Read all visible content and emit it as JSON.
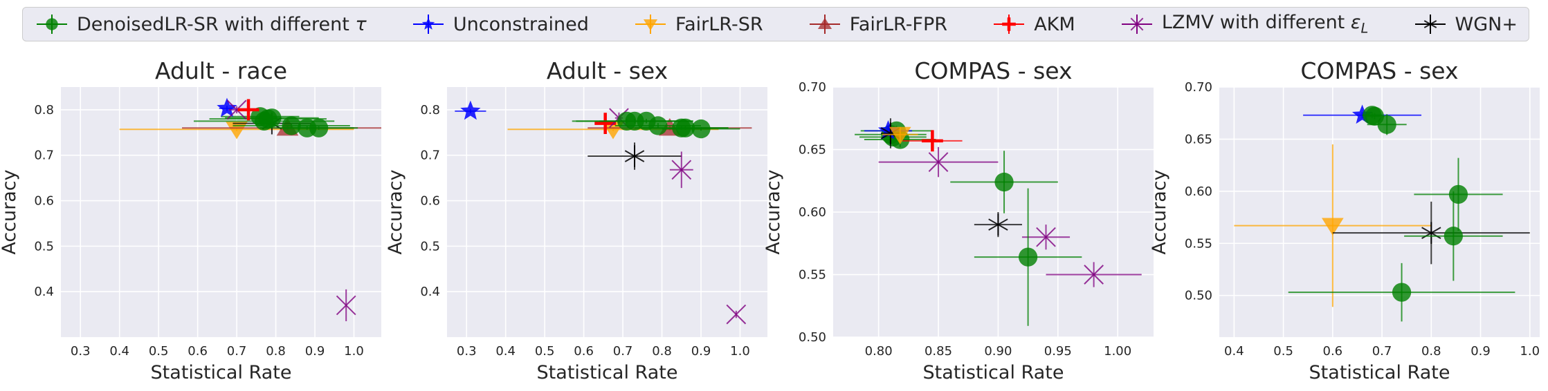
{
  "legend": [
    {
      "key": "denoised",
      "label": "DenoisedLR-SR with different",
      "math": "τ",
      "color": "#008000",
      "marker": "circle"
    },
    {
      "key": "unconstrained",
      "label": "Unconstrained",
      "color": "#0000ff",
      "marker": "star"
    },
    {
      "key": "fairsr",
      "label": "FairLR-SR",
      "color": "#ffa500",
      "marker": "tri_down"
    },
    {
      "key": "fairfpr",
      "label": "FairLR-FPR",
      "color": "#a52a2a",
      "marker": "tri_up"
    },
    {
      "key": "akm",
      "label": "AKM",
      "color": "#ff0000",
      "marker": "plus"
    },
    {
      "key": "lzmv",
      "label": "LZMV with different",
      "math": "ε",
      "math_sub": "L",
      "color": "#800080",
      "marker": "x"
    },
    {
      "key": "wgn",
      "label": "WGN+",
      "color": "#000000",
      "marker": "star6"
    }
  ],
  "chart_data": [
    {
      "type": "scatter",
      "title": "Adult - race",
      "xlabel": "Statistical Rate",
      "ylabel": "Accuracy",
      "xlim": [
        0.25,
        1.07
      ],
      "ylim": [
        0.3,
        0.85
      ],
      "xticks": [
        0.3,
        0.4,
        0.5,
        0.6,
        0.7,
        0.8,
        0.9,
        1.0
      ],
      "xtick_labels": [
        "0.3",
        "0.4",
        "0.5",
        "0.6",
        "0.7",
        "0.8",
        "0.9",
        "1.0"
      ],
      "yticks": [
        0.4,
        0.5,
        0.6,
        0.7,
        0.8
      ],
      "ytick_labels": [
        "0.4",
        "0.5",
        "0.6",
        "0.7",
        "0.8"
      ],
      "points": [
        {
          "s": "fairsr",
          "x": 0.7,
          "y": 0.757,
          "xerr": 0.3,
          "yerr": 0.004
        },
        {
          "s": "fairfpr",
          "x": 0.83,
          "y": 0.76,
          "xerr": 0.27,
          "yerr": 0.005
        },
        {
          "s": "wgn",
          "x": 0.79,
          "y": 0.77,
          "xerr": 0.1,
          "yerr": 0.008
        },
        {
          "s": "denoised",
          "x": 0.77,
          "y": 0.775,
          "xerr": 0.18,
          "yerr": 0.005
        },
        {
          "s": "denoised",
          "x": 0.78,
          "y": 0.78,
          "xerr": 0.15,
          "yerr": 0.006
        },
        {
          "s": "denoised",
          "x": 0.76,
          "y": 0.785,
          "xerr": 0.1,
          "yerr": 0.005
        },
        {
          "s": "denoised",
          "x": 0.79,
          "y": 0.782,
          "xerr": 0.12,
          "yerr": 0.006
        },
        {
          "s": "denoised",
          "x": 0.84,
          "y": 0.765,
          "xerr": 0.15,
          "yerr": 0.005
        },
        {
          "s": "denoised",
          "x": 0.88,
          "y": 0.76,
          "xerr": 0.12,
          "yerr": 0.004
        },
        {
          "s": "denoised",
          "x": 0.91,
          "y": 0.76,
          "xerr": 0.1,
          "yerr": 0.004
        },
        {
          "s": "unconstrained",
          "x": 0.675,
          "y": 0.803,
          "xerr": 0.02,
          "yerr": 0.006
        },
        {
          "s": "lzmv",
          "x": 0.7,
          "y": 0.8,
          "xerr": 0.02,
          "yerr": 0.008
        },
        {
          "s": "akm",
          "x": 0.73,
          "y": 0.8,
          "xerr": 0.025,
          "yerr": 0.01
        },
        {
          "s": "lzmv",
          "x": 0.98,
          "y": 0.37,
          "xerr": 0.0,
          "yerr": 0.035
        }
      ]
    },
    {
      "type": "scatter",
      "title": "Adult - sex",
      "xlabel": "Statistical Rate",
      "ylabel": "Accuracy",
      "xlim": [
        0.25,
        1.07
      ],
      "ylim": [
        0.3,
        0.85
      ],
      "xticks": [
        0.3,
        0.4,
        0.5,
        0.6,
        0.7,
        0.8,
        0.9,
        1.0
      ],
      "xtick_labels": [
        "0.3",
        "0.4",
        "0.5",
        "0.6",
        "0.7",
        "0.8",
        "0.9",
        "1.0"
      ],
      "yticks": [
        0.4,
        0.5,
        0.6,
        0.7,
        0.8
      ],
      "ytick_labels": [
        "0.4",
        "0.5",
        "0.6",
        "0.7",
        "0.8"
      ],
      "points": [
        {
          "s": "unconstrained",
          "x": 0.31,
          "y": 0.797,
          "xerr": 0.04,
          "yerr": 0.005
        },
        {
          "s": "fairsr",
          "x": 0.675,
          "y": 0.757,
          "xerr": 0.27,
          "yerr": 0.004
        },
        {
          "s": "fairfpr",
          "x": 0.82,
          "y": 0.76,
          "xerr": 0.21,
          "yerr": 0.005
        },
        {
          "s": "akm",
          "x": 0.655,
          "y": 0.77,
          "xerr": 0.015,
          "yerr": 0.01
        },
        {
          "s": "lzmv",
          "x": 0.69,
          "y": 0.782,
          "xerr": 0.01,
          "yerr": 0.012
        },
        {
          "s": "denoised",
          "x": 0.71,
          "y": 0.775,
          "xerr": 0.14,
          "yerr": 0.005
        },
        {
          "s": "denoised",
          "x": 0.73,
          "y": 0.775,
          "xerr": 0.15,
          "yerr": 0.005
        },
        {
          "s": "denoised",
          "x": 0.76,
          "y": 0.775,
          "xerr": 0.12,
          "yerr": 0.005
        },
        {
          "s": "denoised",
          "x": 0.79,
          "y": 0.765,
          "xerr": 0.11,
          "yerr": 0.006
        },
        {
          "s": "denoised",
          "x": 0.85,
          "y": 0.76,
          "xerr": 0.12,
          "yerr": 0.004
        },
        {
          "s": "denoised",
          "x": 0.86,
          "y": 0.76,
          "xerr": 0.11,
          "yerr": 0.004
        },
        {
          "s": "denoised",
          "x": 0.9,
          "y": 0.758,
          "xerr": 0.1,
          "yerr": 0.004
        },
        {
          "s": "wgn",
          "x": 0.73,
          "y": 0.698,
          "xerr": 0.12,
          "yerr": 0.03
        },
        {
          "s": "lzmv",
          "x": 0.85,
          "y": 0.668,
          "xerr": 0.03,
          "yerr": 0.04
        },
        {
          "s": "lzmv",
          "x": 0.99,
          "y": 0.35,
          "xerr": 0.0,
          "yerr": 0.008
        }
      ]
    },
    {
      "type": "scatter",
      "title": "COMPAS - sex",
      "xlabel": "Statistical Rate",
      "ylabel": "Accuracy",
      "xlim": [
        0.762,
        1.03
      ],
      "ylim": [
        0.5,
        0.7
      ],
      "xticks": [
        0.8,
        0.85,
        0.9,
        0.95,
        1.0
      ],
      "xtick_labels": [
        "0.80",
        "0.85",
        "0.90",
        "0.95",
        "1.00"
      ],
      "yticks": [
        0.5,
        0.55,
        0.6,
        0.65,
        0.7
      ],
      "ytick_labels": [
        "0.50",
        "0.55",
        "0.60",
        "0.65",
        "0.70"
      ],
      "points": [
        {
          "s": "denoised",
          "x": 0.81,
          "y": 0.662,
          "xerr": 0.03,
          "yerr": 0.004
        },
        {
          "s": "denoised",
          "x": 0.815,
          "y": 0.665,
          "xerr": 0.03,
          "yerr": 0.004
        },
        {
          "s": "denoised",
          "x": 0.812,
          "y": 0.66,
          "xerr": 0.028,
          "yerr": 0.005
        },
        {
          "s": "denoised",
          "x": 0.818,
          "y": 0.658,
          "xerr": 0.03,
          "yerr": 0.006
        },
        {
          "s": "unconstrained",
          "x": 0.808,
          "y": 0.665,
          "xerr": 0.02,
          "yerr": 0.004
        },
        {
          "s": "wgn",
          "x": 0.81,
          "y": 0.663,
          "xerr": 0.008,
          "yerr": 0.012
        },
        {
          "s": "fairsr",
          "x": 0.818,
          "y": 0.662,
          "xerr": 0.015,
          "yerr": 0.006
        },
        {
          "s": "akm",
          "x": 0.845,
          "y": 0.657,
          "xerr": 0.025,
          "yerr": 0.008
        },
        {
          "s": "lzmv",
          "x": 0.85,
          "y": 0.64,
          "xerr": 0.05,
          "yerr": 0.012
        },
        {
          "s": "denoised",
          "x": 0.905,
          "y": 0.624,
          "xerr": 0.045,
          "yerr": 0.025
        },
        {
          "s": "wgn",
          "x": 0.9,
          "y": 0.59,
          "xerr": 0.02,
          "yerr": 0.01
        },
        {
          "s": "lzmv",
          "x": 0.94,
          "y": 0.58,
          "xerr": 0.02,
          "yerr": 0.01
        },
        {
          "s": "denoised",
          "x": 0.925,
          "y": 0.564,
          "xerr": 0.045,
          "yerr": 0.055
        },
        {
          "s": "lzmv",
          "x": 0.98,
          "y": 0.55,
          "xerr": 0.04,
          "yerr": 0.01
        }
      ]
    },
    {
      "type": "scatter",
      "title": "COMPAS - sex",
      "xlabel": "Statistical Rate",
      "ylabel": "Accuracy",
      "xlim": [
        0.37,
        1.02
      ],
      "ylim": [
        0.46,
        0.7
      ],
      "xticks": [
        0.4,
        0.5,
        0.6,
        0.7,
        0.8,
        0.9,
        1.0
      ],
      "xtick_labels": [
        "0.4",
        "0.5",
        "0.6",
        "0.7",
        "0.8",
        "0.9",
        "1.0"
      ],
      "yticks": [
        0.5,
        0.55,
        0.6,
        0.65,
        0.7
      ],
      "ytick_labels": [
        "0.50",
        "0.55",
        "0.60",
        "0.65",
        "0.70"
      ],
      "points": [
        {
          "s": "unconstrained",
          "x": 0.66,
          "y": 0.673,
          "xerr": 0.12,
          "yerr": 0.003
        },
        {
          "s": "denoised",
          "x": 0.68,
          "y": 0.673,
          "xerr": 0.02,
          "yerr": 0.003
        },
        {
          "s": "denoised",
          "x": 0.685,
          "y": 0.672,
          "xerr": 0.02,
          "yerr": 0.003
        },
        {
          "s": "denoised",
          "x": 0.71,
          "y": 0.664,
          "xerr": 0.04,
          "yerr": 0.01
        },
        {
          "s": "denoised",
          "x": 0.855,
          "y": 0.597,
          "xerr": 0.09,
          "yerr": 0.035
        },
        {
          "s": "fairsr",
          "x": 0.6,
          "y": 0.567,
          "xerr": 0.2,
          "yerr": 0.078
        },
        {
          "s": "wgn",
          "x": 0.8,
          "y": 0.56,
          "xerr": 0.2,
          "yerr": 0.03
        },
        {
          "s": "denoised",
          "x": 0.845,
          "y": 0.557,
          "xerr": 0.1,
          "yerr": 0.043
        },
        {
          "s": "denoised",
          "x": 0.74,
          "y": 0.503,
          "xerr": 0.23,
          "yerr": 0.028
        }
      ]
    }
  ]
}
